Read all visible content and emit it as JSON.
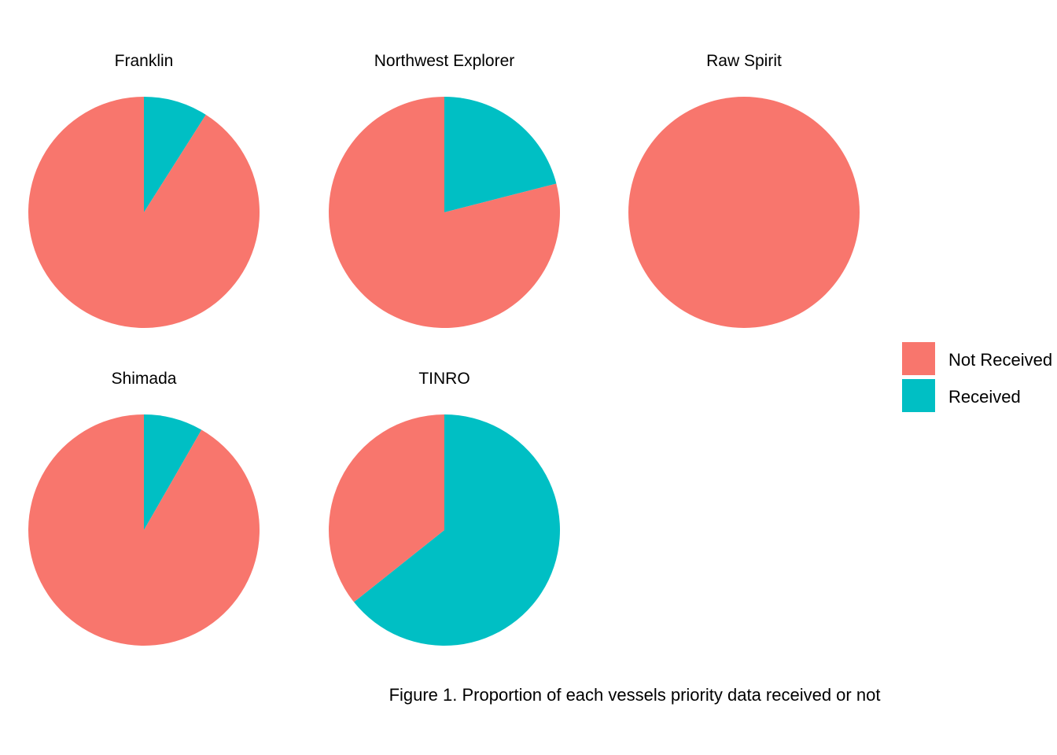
{
  "colors": {
    "not_received": "#F8766D",
    "received": "#00BFC4",
    "background": "#FFFFFF"
  },
  "legend": {
    "items": [
      {
        "label": "Not Received",
        "color": "#F8766D"
      },
      {
        "label": "Received",
        "color": "#00BFC4"
      }
    ]
  },
  "caption": "Figure 1. Proportion of each vessels priority data received or not",
  "chart_data": {
    "type": "pie",
    "categories": [
      "Not Received",
      "Received"
    ],
    "series": [
      {
        "name": "Franklin",
        "values": [
          0.91,
          0.09
        ]
      },
      {
        "name": "Northwest Explorer",
        "values": [
          0.79,
          0.21
        ]
      },
      {
        "name": "Raw Spirit",
        "values": [
          1.0,
          0.0
        ]
      },
      {
        "name": "Shimada",
        "values": [
          0.917,
          0.083
        ]
      },
      {
        "name": "TINRO",
        "values": [
          0.357,
          0.643
        ]
      }
    ],
    "start_angle": "12 o'clock",
    "direction": "clockwise",
    "slice_order": [
      "Received",
      "Not Received"
    ],
    "legend_position": "right",
    "grid": false
  }
}
